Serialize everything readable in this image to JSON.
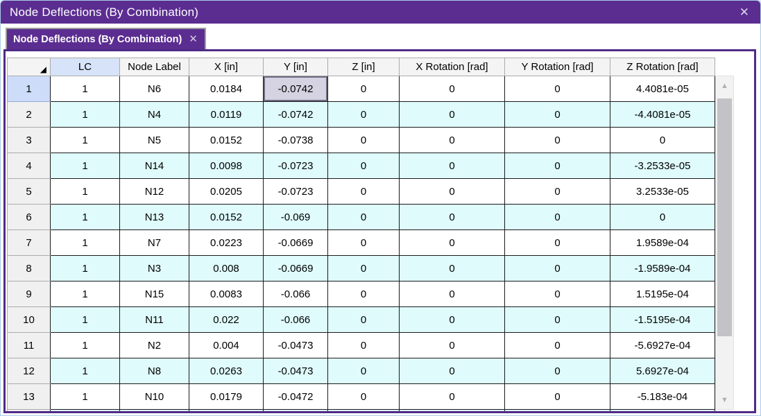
{
  "window": {
    "title": "Node Deflections (By Combination)",
    "close_glyph": "✕"
  },
  "tab": {
    "label": "Node Deflections (By Combination)",
    "close_glyph": "✕"
  },
  "colors": {
    "accent_purple": "#5B2D91",
    "panel_border": "#4F2A86",
    "row_alternate": "#DFFBFC",
    "selected_cell": "#D5D2E1",
    "header_highlight": "#D6E3F8",
    "row_header_highlight": "#CDDCF9"
  },
  "scrollbar": {
    "up_glyph": "▲",
    "down_glyph": "▼"
  },
  "table": {
    "corner_glyph": "◢",
    "columns": [
      {
        "label": "",
        "highlight": false
      },
      {
        "label": "LC",
        "highlight": true
      },
      {
        "label": "Node Label",
        "highlight": false
      },
      {
        "label": "X [in]",
        "highlight": false
      },
      {
        "label": "Y [in]",
        "highlight": false
      },
      {
        "label": "Z [in]",
        "highlight": false
      },
      {
        "label": "X Rotation [rad]",
        "highlight": false
      },
      {
        "label": "Y Rotation [rad]",
        "highlight": false
      },
      {
        "label": "Z Rotation [rad]",
        "highlight": false
      }
    ],
    "selection": {
      "row_number": "1",
      "column_label": "Y [in]",
      "row_index": 0,
      "column_index": 4
    },
    "rows": [
      {
        "num": "1",
        "lc": "1",
        "node": "N6",
        "x": "0.0184",
        "y": "-0.0742",
        "z": "0",
        "x_rot": "0",
        "y_rot": "0",
        "z_rot": "4.4081e-05"
      },
      {
        "num": "2",
        "lc": "1",
        "node": "N4",
        "x": "0.0119",
        "y": "-0.0742",
        "z": "0",
        "x_rot": "0",
        "y_rot": "0",
        "z_rot": "-4.4081e-05"
      },
      {
        "num": "3",
        "lc": "1",
        "node": "N5",
        "x": "0.0152",
        "y": "-0.0738",
        "z": "0",
        "x_rot": "0",
        "y_rot": "0",
        "z_rot": "0"
      },
      {
        "num": "4",
        "lc": "1",
        "node": "N14",
        "x": "0.0098",
        "y": "-0.0723",
        "z": "0",
        "x_rot": "0",
        "y_rot": "0",
        "z_rot": "-3.2533e-05"
      },
      {
        "num": "5",
        "lc": "1",
        "node": "N12",
        "x": "0.0205",
        "y": "-0.0723",
        "z": "0",
        "x_rot": "0",
        "y_rot": "0",
        "z_rot": "3.2533e-05"
      },
      {
        "num": "6",
        "lc": "1",
        "node": "N13",
        "x": "0.0152",
        "y": "-0.069",
        "z": "0",
        "x_rot": "0",
        "y_rot": "0",
        "z_rot": "0"
      },
      {
        "num": "7",
        "lc": "1",
        "node": "N7",
        "x": "0.0223",
        "y": "-0.0669",
        "z": "0",
        "x_rot": "0",
        "y_rot": "0",
        "z_rot": "1.9589e-04"
      },
      {
        "num": "8",
        "lc": "1",
        "node": "N3",
        "x": "0.008",
        "y": "-0.0669",
        "z": "0",
        "x_rot": "0",
        "y_rot": "0",
        "z_rot": "-1.9589e-04"
      },
      {
        "num": "9",
        "lc": "1",
        "node": "N15",
        "x": "0.0083",
        "y": "-0.066",
        "z": "0",
        "x_rot": "0",
        "y_rot": "0",
        "z_rot": "1.5195e-04"
      },
      {
        "num": "10",
        "lc": "1",
        "node": "N11",
        "x": "0.022",
        "y": "-0.066",
        "z": "0",
        "x_rot": "0",
        "y_rot": "0",
        "z_rot": "-1.5195e-04"
      },
      {
        "num": "11",
        "lc": "1",
        "node": "N2",
        "x": "0.004",
        "y": "-0.0473",
        "z": "0",
        "x_rot": "0",
        "y_rot": "0",
        "z_rot": "-5.6927e-04"
      },
      {
        "num": "12",
        "lc": "1",
        "node": "N8",
        "x": "0.0263",
        "y": "-0.0473",
        "z": "0",
        "x_rot": "0",
        "y_rot": "0",
        "z_rot": "5.6927e-04"
      },
      {
        "num": "13",
        "lc": "1",
        "node": "N10",
        "x": "0.0179",
        "y": "-0.0472",
        "z": "0",
        "x_rot": "0",
        "y_rot": "0",
        "z_rot": "-5.183e-04"
      }
    ],
    "partial_row_visible": true
  }
}
